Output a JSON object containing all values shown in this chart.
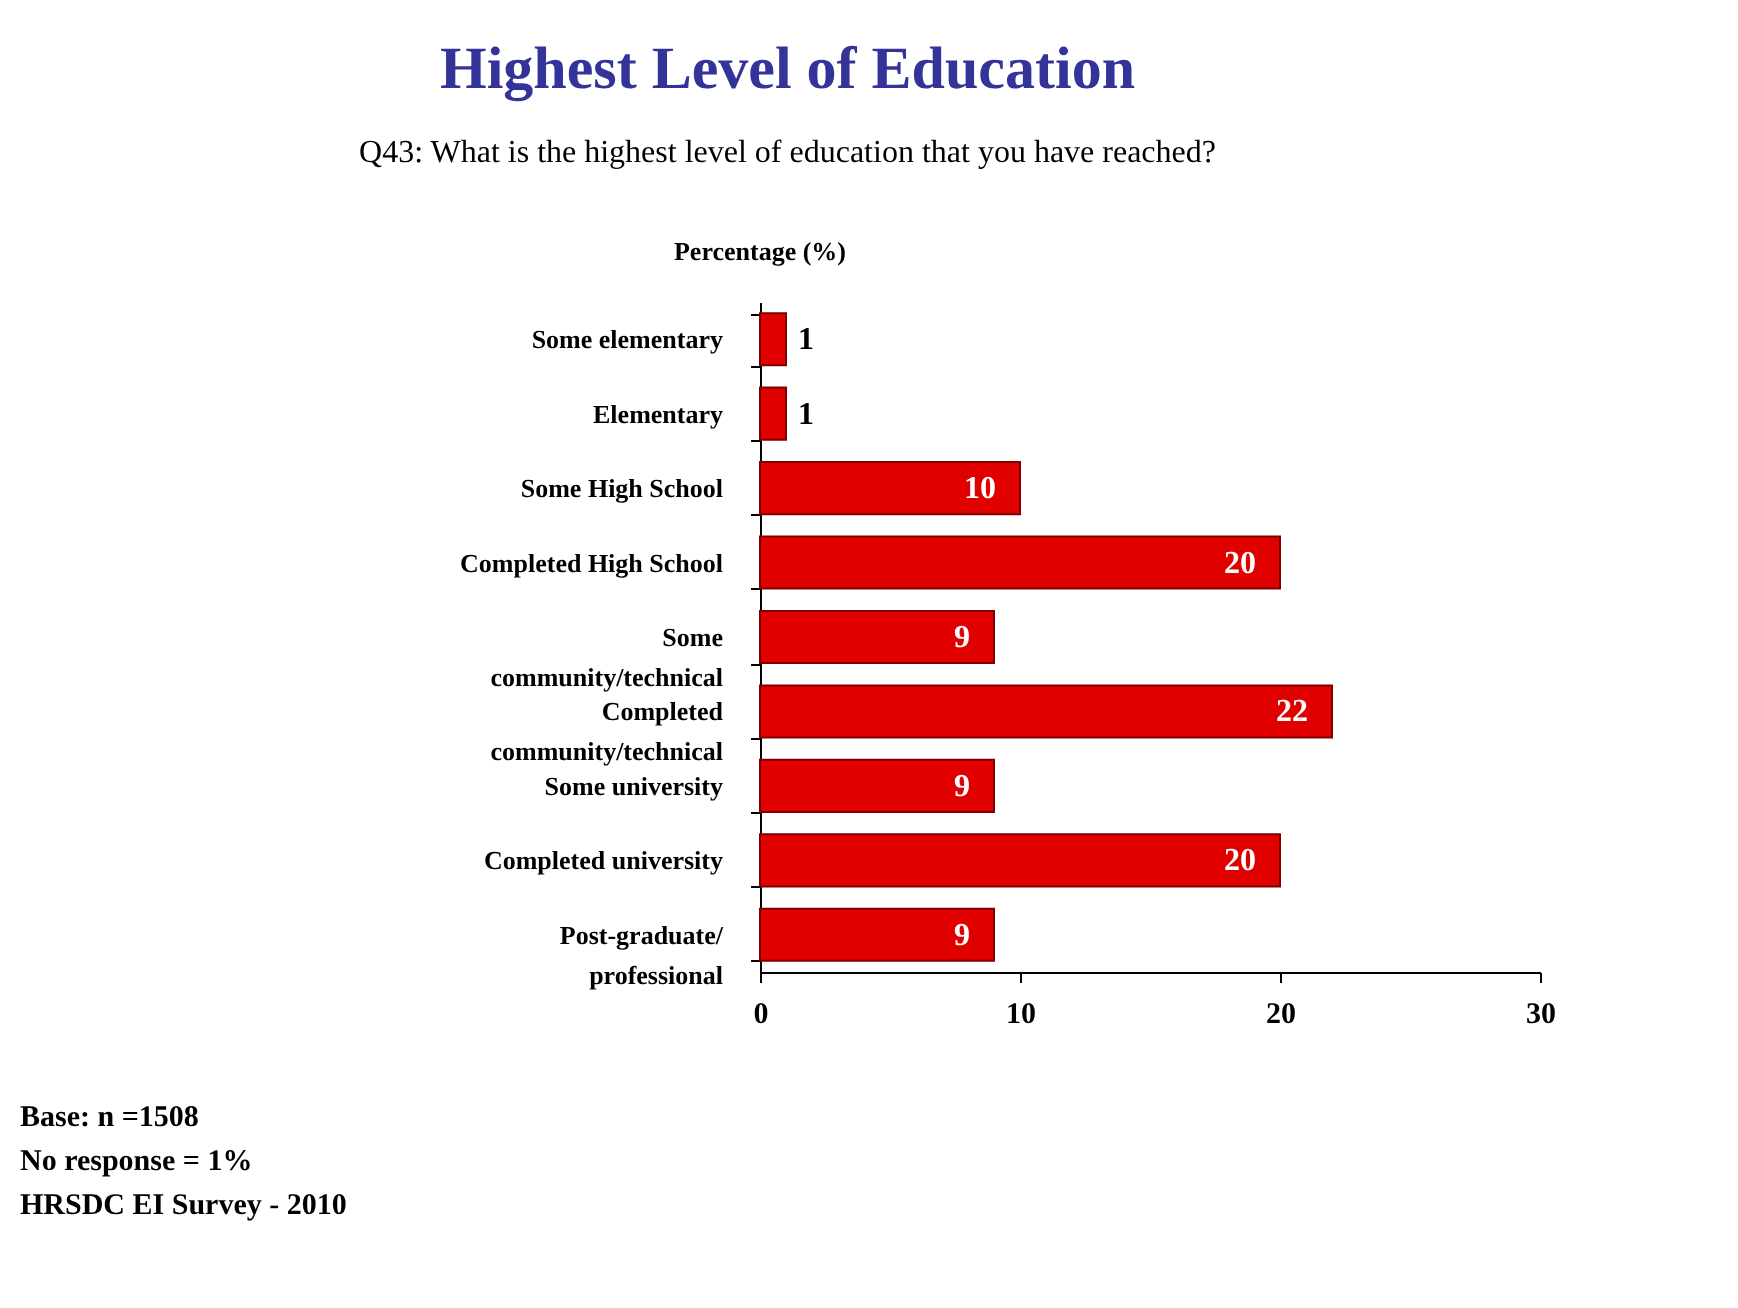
{
  "chart_data": {
    "type": "bar",
    "orientation": "horizontal",
    "title": "Highest Level of Education",
    "subtitle": "Q43: What is the highest level of education that you have reached?",
    "xlabel": "Percentage (%)",
    "categories": [
      "Some elementary",
      "Elementary",
      "Some High School",
      "Completed High School",
      "Some community/technical",
      "Completed community/technical",
      "Some university",
      "Completed university",
      "Post-graduate/professional"
    ],
    "values": [
      1,
      1,
      10,
      20,
      9,
      22,
      9,
      20,
      9
    ],
    "color": "#e00000",
    "xlim": [
      0,
      30
    ],
    "xticks": [
      0,
      10,
      20,
      30
    ],
    "data_labels": true,
    "grid": false,
    "annotations": [
      "Base: n =1508",
      "No response = 1%",
      "HRSDC EI Survey - 2010"
    ]
  }
}
